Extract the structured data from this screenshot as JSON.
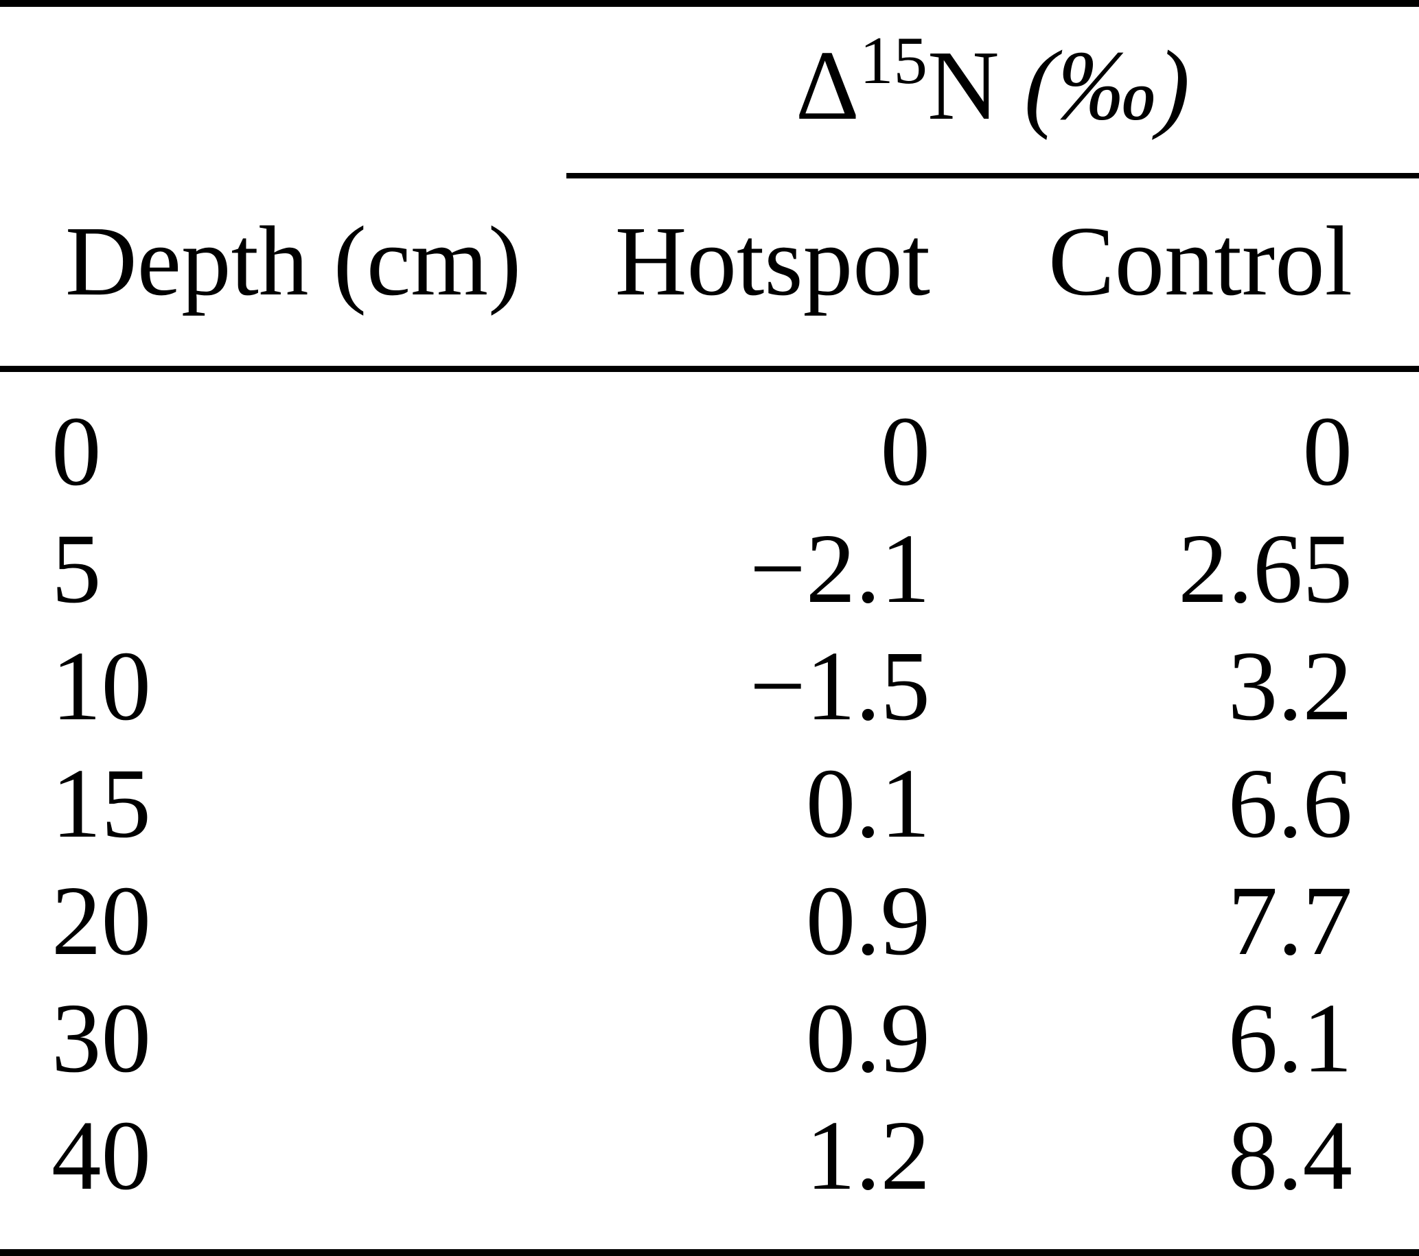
{
  "header": {
    "spanner": {
      "base": "Δ",
      "superscript": "15",
      "element": "N",
      "unit": "(‰)"
    },
    "columns": [
      "Depth (cm)",
      "Hotspot",
      "Control"
    ]
  },
  "rows": [
    {
      "depth": "0",
      "hotspot": "0",
      "control": "0"
    },
    {
      "depth": "5",
      "hotspot": "−2.1",
      "control": "2.65"
    },
    {
      "depth": "10",
      "hotspot": "−1.5",
      "control": "3.2"
    },
    {
      "depth": "15",
      "hotspot": "0.1",
      "control": "6.6"
    },
    {
      "depth": "20",
      "hotspot": "0.9",
      "control": "7.7"
    },
    {
      "depth": "30",
      "hotspot": "0.9",
      "control": "6.1"
    },
    {
      "depth": "40",
      "hotspot": "1.2",
      "control": "8.4"
    }
  ],
  "chart_data": {
    "type": "table",
    "title": "Δ15N (‰) at Hotspot and Control by soil depth",
    "columns": [
      "Depth (cm)",
      "Hotspot",
      "Control"
    ],
    "value_unit": "‰",
    "x": [
      0,
      5,
      10,
      15,
      20,
      30,
      40
    ],
    "series": [
      {
        "name": "Hotspot",
        "values": [
          0,
          -2.1,
          -1.5,
          0.1,
          0.9,
          0.9,
          1.2
        ]
      },
      {
        "name": "Control",
        "values": [
          0,
          2.65,
          3.2,
          6.6,
          7.7,
          6.1,
          8.4
        ]
      }
    ]
  },
  "colors": {
    "text": "#000000",
    "background": "#ffffff",
    "rule": "#000000"
  }
}
